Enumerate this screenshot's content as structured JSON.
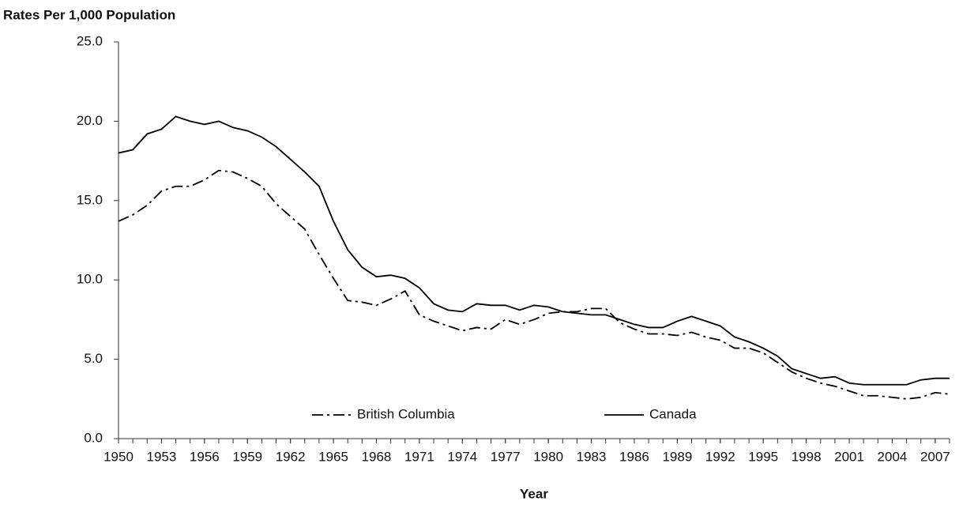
{
  "chart_data": {
    "type": "line",
    "y_label": "Rates Per 1,000 Population",
    "x_label": "Year",
    "x": [
      1950,
      1951,
      1952,
      1953,
      1954,
      1955,
      1956,
      1957,
      1958,
      1959,
      1960,
      1961,
      1962,
      1963,
      1964,
      1965,
      1966,
      1967,
      1968,
      1969,
      1970,
      1971,
      1972,
      1973,
      1974,
      1975,
      1976,
      1977,
      1978,
      1979,
      1980,
      1981,
      1982,
      1983,
      1984,
      1985,
      1986,
      1987,
      1988,
      1989,
      1990,
      1991,
      1992,
      1993,
      1994,
      1995,
      1996,
      1997,
      1998,
      1999,
      2000,
      2001,
      2002,
      2003,
      2004,
      2005,
      2006,
      2007,
      2008
    ],
    "xlim": [
      1950,
      2008
    ],
    "xticks": [
      1950,
      1953,
      1956,
      1959,
      1962,
      1965,
      1968,
      1971,
      1974,
      1977,
      1980,
      1983,
      1986,
      1989,
      1992,
      1995,
      1998,
      2001,
      2004,
      2007
    ],
    "ylim": [
      0,
      25
    ],
    "yticks": [
      {
        "value": 0,
        "label": "0.0"
      },
      {
        "value": 5,
        "label": "5.0"
      },
      {
        "value": 10,
        "label": "10.0"
      },
      {
        "value": 15,
        "label": "15.0"
      },
      {
        "value": 20,
        "label": "20.0"
      },
      {
        "value": 25,
        "label": "25.0"
      }
    ],
    "grid": false,
    "legend": "bottom",
    "series": [
      {
        "name": "British Columbia",
        "color": "#000000",
        "line_style": "dash-dot",
        "values": [
          13.7,
          14.1,
          14.7,
          15.6,
          15.9,
          15.9,
          16.3,
          16.9,
          16.8,
          16.4,
          15.9,
          14.8,
          14.0,
          13.2,
          11.6,
          10.1,
          8.7,
          8.6,
          8.4,
          8.8,
          9.3,
          7.8,
          7.4,
          7.1,
          6.8,
          7.0,
          6.9,
          7.5,
          7.2,
          7.5,
          7.9,
          8.0,
          8.0,
          8.2,
          8.2,
          7.3,
          6.9,
          6.6,
          6.6,
          6.5,
          6.7,
          6.4,
          6.2,
          5.7,
          5.7,
          5.4,
          4.8,
          4.2,
          3.8,
          3.5,
          3.3,
          3.0,
          2.7,
          2.7,
          2.6,
          2.5,
          2.6,
          2.9,
          2.8
        ]
      },
      {
        "name": "Canada",
        "color": "#000000",
        "line_style": "solid",
        "values": [
          18.0,
          18.2,
          19.2,
          19.5,
          20.3,
          20.0,
          19.8,
          20.0,
          19.6,
          19.4,
          19.0,
          18.4,
          17.6,
          16.8,
          15.9,
          13.7,
          11.9,
          10.8,
          10.2,
          10.3,
          10.1,
          9.5,
          8.5,
          8.1,
          8.0,
          8.5,
          8.4,
          8.4,
          8.1,
          8.4,
          8.3,
          8.0,
          7.9,
          7.8,
          7.8,
          7.5,
          7.2,
          7.0,
          7.0,
          7.4,
          7.7,
          7.4,
          7.1,
          6.4,
          6.1,
          5.7,
          5.2,
          4.4,
          4.1,
          3.8,
          3.9,
          3.5,
          3.4,
          3.4,
          3.4,
          3.4,
          3.7,
          3.8,
          3.8
        ]
      }
    ]
  }
}
